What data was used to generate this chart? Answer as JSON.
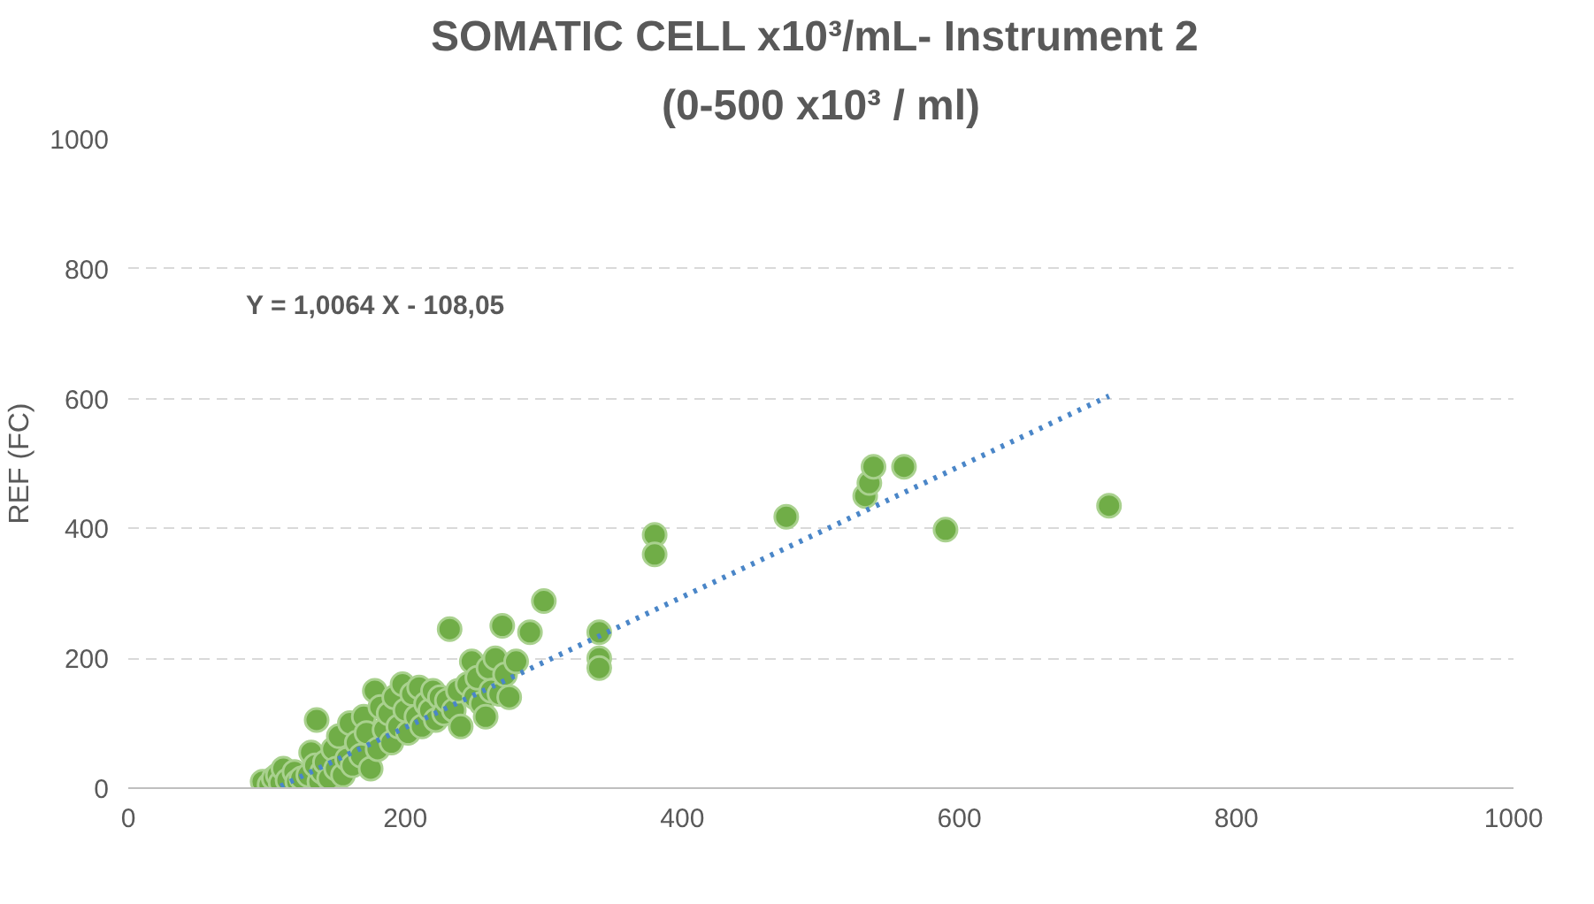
{
  "chart_data": {
    "type": "scatter",
    "title": "SOMATIC CELL x10³/mL- Instrument  2",
    "subtitle": "(0-500 x10³ / ml)",
    "ylabel": "REF (FC)",
    "xlim": [
      0,
      1000
    ],
    "ylim": [
      0,
      1000
    ],
    "xticks": [
      0,
      200,
      400,
      600,
      800,
      1000
    ],
    "yticks": [
      0,
      200,
      400,
      600,
      800,
      1000
    ],
    "grid": "y",
    "annotations": [
      "Y = 1,0064 X - 108,05"
    ],
    "series": [
      {
        "color": "#70ad47",
        "marker": "circle",
        "x": [
          97,
          102,
          105,
          108,
          110,
          112,
          115,
          120,
          122,
          125,
          130,
          132,
          135,
          136,
          138,
          140,
          142,
          145,
          148,
          150,
          152,
          155,
          158,
          160,
          162,
          165,
          168,
          170,
          172,
          175,
          178,
          180,
          182,
          185,
          188,
          190,
          192,
          195,
          198,
          200,
          202,
          205,
          208,
          210,
          212,
          215,
          218,
          220,
          222,
          225,
          228,
          230,
          232,
          235,
          238,
          240,
          245,
          248,
          250,
          252,
          255,
          258,
          260,
          262,
          265,
          268,
          270,
          272,
          275,
          280,
          290,
          300,
          340,
          340,
          340,
          380,
          380,
          475,
          532,
          535,
          538,
          560,
          590,
          708
        ],
        "values": [
          10,
          5,
          15,
          20,
          8,
          30,
          12,
          25,
          10,
          15,
          20,
          55,
          35,
          105,
          10,
          25,
          40,
          15,
          60,
          30,
          80,
          20,
          45,
          100,
          35,
          70,
          50,
          110,
          85,
          30,
          150,
          60,
          125,
          90,
          115,
          70,
          140,
          95,
          160,
          120,
          85,
          145,
          110,
          155,
          95,
          130,
          120,
          150,
          105,
          140,
          115,
          135,
          245,
          120,
          150,
          95,
          160,
          195,
          140,
          170,
          130,
          110,
          185,
          150,
          200,
          145,
          250,
          175,
          140,
          195,
          240,
          288,
          240,
          200,
          185,
          390,
          360,
          418,
          450,
          470,
          495,
          495,
          398,
          435
        ]
      },
      {
        "type": "line",
        "color": "#4a86c8",
        "line_style": "dotted",
        "marker": "none",
        "x": [
          110,
          708
        ],
        "values": [
          3,
          604
        ]
      }
    ]
  }
}
